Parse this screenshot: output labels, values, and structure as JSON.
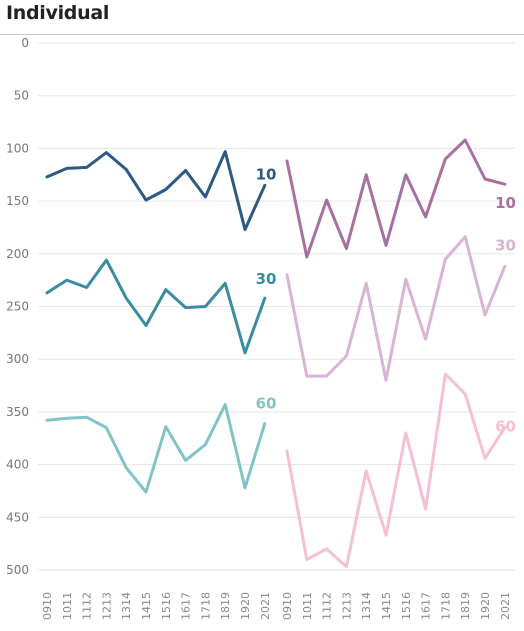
{
  "chart_data": {
    "type": "line",
    "title": "Individual",
    "xlabel": "",
    "ylabel": "",
    "y_axis": {
      "min": 0,
      "max": 520,
      "inverted": true,
      "ticks": [
        0,
        50,
        100,
        150,
        200,
        250,
        300,
        350,
        400,
        450,
        500
      ]
    },
    "grid": true,
    "panels": [
      {
        "categories": [
          "0910",
          "1011",
          "1112",
          "1213",
          "1314",
          "1415",
          "1516",
          "1617",
          "1718",
          "1819",
          "1920",
          "2021"
        ],
        "series": [
          {
            "label": "10",
            "color": "#2d5982",
            "values": [
              127,
              119,
              118,
              104,
              120,
              149,
              139,
              121,
              146,
              103,
              177,
              135
            ]
          },
          {
            "label": "30",
            "color": "#3a8ca3",
            "values": [
              237,
              225,
              232,
              206,
              242,
              268,
              234,
              251,
              250,
              228,
              294,
              242
            ]
          },
          {
            "label": "60",
            "color": "#80c4c7",
            "values": [
              358,
              356,
              355,
              365,
              403,
              426,
              364,
              396,
              381,
              343,
              422,
              361
            ]
          }
        ]
      },
      {
        "categories": [
          "0910",
          "1011",
          "1112",
          "1213",
          "1314",
          "1415",
          "1516",
          "1617",
          "1718",
          "1819",
          "1920",
          "2021"
        ],
        "series": [
          {
            "label": "10",
            "color": "#a86fa3",
            "values": [
              112,
              203,
              149,
              195,
              125,
              192,
              125,
              165,
              110,
              92,
              129,
              134
            ]
          },
          {
            "label": "30",
            "color": "#d9b4d6",
            "values": [
              220,
              316,
              316,
              297,
              228,
              320,
              224,
              281,
              205,
              184,
              258,
              212
            ]
          },
          {
            "label": "60",
            "color": "#f7bfd3",
            "values": [
              387,
              490,
              480,
              497,
              406,
              467,
              370,
              442,
              314,
              333,
              394,
              365
            ]
          }
        ]
      }
    ]
  }
}
